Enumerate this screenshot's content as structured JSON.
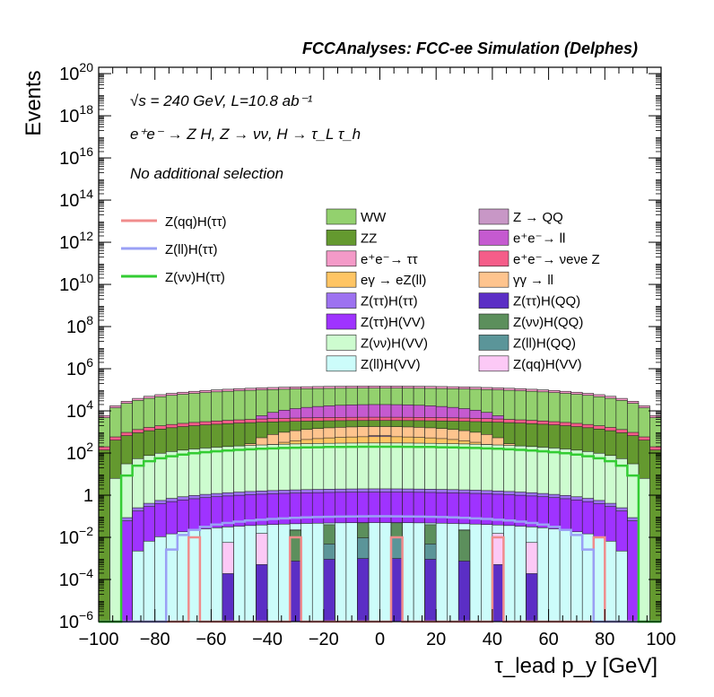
{
  "header": "FCCAnalyses: FCC-ee Simulation (Delphes)",
  "annotations": {
    "energy_lumi": "√s = 240 GeV, L=10.8 ab⁻¹",
    "process": "e⁺e⁻ → Z H, Z → νν, H → τ_L τ_h",
    "selection": "No additional selection"
  },
  "chart_data": {
    "type": "stacked-histogram",
    "xlabel": "τ_lead p_y [GeV]",
    "ylabel": "Events",
    "xlim": [
      -100,
      100
    ],
    "ylim": [
      1e-06,
      2e+20
    ],
    "yscale": "log",
    "x_ticks": [
      -100,
      -80,
      -60,
      -40,
      -20,
      0,
      20,
      40,
      60,
      80,
      100
    ],
    "y_ticks": [
      {
        "value": 1e-06,
        "label": "10^-6"
      },
      {
        "value": 0.0001,
        "label": "10^-4"
      },
      {
        "value": 0.01,
        "label": "10^-2"
      },
      {
        "value": 1,
        "label": "1"
      },
      {
        "value": 100.0,
        "label": "10^2"
      },
      {
        "value": 10000.0,
        "label": "10^4"
      },
      {
        "value": 1000000.0,
        "label": "10^6"
      },
      {
        "value": 100000000.0,
        "label": "10^8"
      },
      {
        "value": 10000000000.0,
        "label": "10^10"
      },
      {
        "value": 1000000000000.0,
        "label": "10^12"
      },
      {
        "value": 100000000000000.0,
        "label": "10^14"
      },
      {
        "value": 1e+16,
        "label": "10^16"
      },
      {
        "value": 1e+18,
        "label": "10^18"
      },
      {
        "value": 1e+20,
        "label": "10^20"
      }
    ],
    "grid": false,
    "legend_placement": "top-right",
    "stack_outer_envelope": [
      {
        "x_range": [
          -100,
          -95
        ],
        "y": 6
      },
      {
        "x_range": [
          -95,
          -90
        ],
        "y": 10000
      },
      {
        "x_range": [
          -90,
          -50
        ],
        "y": 100000
      },
      {
        "x_range": [
          -50,
          50
        ],
        "y": 250000
      },
      {
        "x_range": [
          50,
          90
        ],
        "y": 100000
      },
      {
        "x_range": [
          90,
          95
        ],
        "y": 10000
      },
      {
        "x_range": [
          95,
          100
        ],
        "y": 6
      }
    ],
    "signals": [
      {
        "name": "Z(qq)H(ττ)",
        "color": "#f08c8c",
        "style": "line",
        "profile": "sparse spikes near 1e-2"
      },
      {
        "name": "Z(ll)H(ττ)",
        "color": "#9aa0f5",
        "style": "line",
        "peak": 0.1,
        "halfwidth": 75
      },
      {
        "name": "Z(νν)H(ττ)",
        "color": "#33cc33",
        "style": "line",
        "peak": 200,
        "halfwidth": 92
      }
    ],
    "backgrounds": [
      {
        "name": "WW",
        "color": "#93d16e",
        "peak": 120000,
        "halfwidth": 100
      },
      {
        "name": "ZZ",
        "color": "#64992f",
        "peak": 3500,
        "halfwidth": 100
      },
      {
        "name": "e⁺e⁻→ ττ",
        "color": "#f49ac8",
        "peak": 150000,
        "halfwidth": 100
      },
      {
        "name": "eγ → eZ(ll)",
        "color": "#ffc564",
        "peak": 600,
        "halfwidth": 50
      },
      {
        "name": "Z(ττ)H(ττ)",
        "color": "#9d72f0",
        "peak": 2,
        "halfwidth": 92
      },
      {
        "name": "Z(ττ)H(VV)",
        "color": "#9f33ff",
        "peak": 1.4,
        "halfwidth": 92
      },
      {
        "name": "Z(νν)H(VV)",
        "color": "#cdfccf",
        "peak": 300,
        "halfwidth": 95
      },
      {
        "name": "Z(ll)H(VV)",
        "color": "#ccfcfa",
        "peak": 0.05,
        "halfwidth": 88
      },
      {
        "name": "Z → QQ",
        "color": "#c897c6",
        "peak": 800,
        "halfwidth": 5
      },
      {
        "name": "e⁺e⁻→ ll",
        "color": "#c55ad0",
        "peak": 20000,
        "halfwidth": 50
      },
      {
        "name": "e⁺e⁻→ νeνe Z",
        "color": "#f55d89",
        "peak": 5000,
        "halfwidth": 100
      },
      {
        "name": "γγ → ll",
        "color": "#fec48e",
        "peak": 1800,
        "halfwidth": 50
      },
      {
        "name": "Z(ττ)H(QQ)",
        "color": "#5b2ec5",
        "peak": 0.001,
        "halfwidth": 60
      },
      {
        "name": "Z(νν)H(QQ)",
        "color": "#5c8f5c",
        "peak": 0.05,
        "halfwidth": 40
      },
      {
        "name": "Z(ll)H(QQ)",
        "color": "#5b9599",
        "peak": 0.01,
        "halfwidth": 25
      },
      {
        "name": "Z(qq)H(VV)",
        "color": "#fcc9f6",
        "peak": 0.03,
        "halfwidth": 60
      }
    ]
  }
}
